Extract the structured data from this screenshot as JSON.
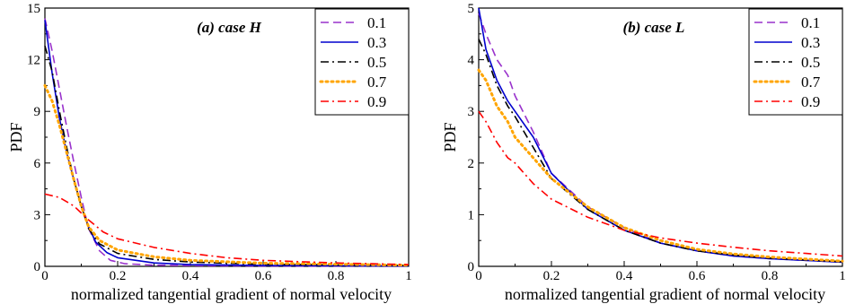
{
  "chart_data": [
    {
      "type": "line",
      "title": "(a) case H",
      "xlabel": "normalized tangential gradient of normal velocity",
      "ylabel": "PDF",
      "xlim": [
        0,
        1
      ],
      "ylim": [
        0,
        15
      ],
      "xticks": [
        "0",
        "0.2",
        "0.4",
        "0.6",
        "0.8",
        "1"
      ],
      "yticks": [
        "0",
        "3",
        "6",
        "9",
        "12",
        "15"
      ],
      "legend_position": "top-right",
      "series": [
        {
          "name": "0.1",
          "color": "#9932CC",
          "style": "dashed",
          "points": [
            [
              0,
              14.4
            ],
            [
              0.02,
              12.5
            ],
            [
              0.04,
              10.3
            ],
            [
              0.06,
              8.1
            ],
            [
              0.08,
              6.0
            ],
            [
              0.1,
              4.0
            ],
            [
              0.12,
              2.2
            ],
            [
              0.15,
              0.9
            ],
            [
              0.18,
              0.35
            ],
            [
              0.22,
              0.15
            ],
            [
              0.3,
              0.07
            ],
            [
              0.4,
              0.04
            ],
            [
              0.6,
              0.02
            ],
            [
              1,
              0.01
            ]
          ]
        },
        {
          "name": "0.3",
          "color": "#0000CD",
          "style": "solid",
          "points": [
            [
              0,
              14.3
            ],
            [
              0.02,
              11.2
            ],
            [
              0.04,
              8.6
            ],
            [
              0.06,
              6.6
            ],
            [
              0.08,
              5.0
            ],
            [
              0.1,
              3.5
            ],
            [
              0.12,
              2.3
            ],
            [
              0.14,
              1.4
            ],
            [
              0.17,
              0.8
            ],
            [
              0.2,
              0.5
            ],
            [
              0.3,
              0.2
            ],
            [
              0.4,
              0.1
            ],
            [
              0.6,
              0.05
            ],
            [
              1,
              0.02
            ]
          ]
        },
        {
          "name": "0.5",
          "color": "#000000",
          "style": "dashdot",
          "points": [
            [
              0,
              12.8
            ],
            [
              0.02,
              11.3
            ],
            [
              0.04,
              9.0
            ],
            [
              0.06,
              6.9
            ],
            [
              0.08,
              5.0
            ],
            [
              0.1,
              3.5
            ],
            [
              0.12,
              2.2
            ],
            [
              0.15,
              1.3
            ],
            [
              0.2,
              0.75
            ],
            [
              0.3,
              0.4
            ],
            [
              0.4,
              0.25
            ],
            [
              0.6,
              0.12
            ],
            [
              1,
              0.05
            ]
          ]
        },
        {
          "name": "0.7",
          "color": "#FFA500",
          "style": "dotted",
          "points": [
            [
              0,
              10.5
            ],
            [
              0.02,
              9.6
            ],
            [
              0.04,
              8.2
            ],
            [
              0.06,
              6.6
            ],
            [
              0.08,
              5.0
            ],
            [
              0.1,
              3.5
            ],
            [
              0.12,
              2.3
            ],
            [
              0.15,
              1.5
            ],
            [
              0.2,
              0.95
            ],
            [
              0.3,
              0.55
            ],
            [
              0.4,
              0.35
            ],
            [
              0.6,
              0.18
            ],
            [
              1,
              0.07
            ]
          ]
        },
        {
          "name": "0.9",
          "color": "#FF0000",
          "style": "dashdot",
          "points": [
            [
              0,
              4.2
            ],
            [
              0.04,
              4.0
            ],
            [
              0.08,
              3.5
            ],
            [
              0.12,
              2.7
            ],
            [
              0.16,
              2.0
            ],
            [
              0.2,
              1.6
            ],
            [
              0.3,
              1.1
            ],
            [
              0.4,
              0.75
            ],
            [
              0.5,
              0.5
            ],
            [
              0.6,
              0.35
            ],
            [
              0.7,
              0.27
            ],
            [
              0.8,
              0.2
            ],
            [
              0.9,
              0.15
            ],
            [
              1,
              0.1
            ]
          ]
        }
      ]
    },
    {
      "type": "line",
      "title": "(b) case L",
      "xlabel": "normalized tangential gradient of normal velocity",
      "ylabel": "PDF",
      "xlim": [
        0,
        1
      ],
      "ylim": [
        0,
        5
      ],
      "xticks": [
        "0",
        "0.2",
        "0.4",
        "0.6",
        "0.8",
        "1"
      ],
      "yticks": [
        "0",
        "1",
        "2",
        "3",
        "4",
        "5"
      ],
      "legend_position": "top-right",
      "series": [
        {
          "name": "0.1",
          "color": "#9932CC",
          "style": "dashed",
          "points": [
            [
              0,
              4.9
            ],
            [
              0.02,
              4.5
            ],
            [
              0.05,
              4.0
            ],
            [
              0.08,
              3.7
            ],
            [
              0.1,
              3.3
            ],
            [
              0.15,
              2.6
            ],
            [
              0.2,
              1.8
            ],
            [
              0.3,
              1.15
            ],
            [
              0.4,
              0.75
            ],
            [
              0.5,
              0.45
            ],
            [
              0.6,
              0.3
            ],
            [
              0.7,
              0.2
            ],
            [
              0.8,
              0.15
            ],
            [
              1,
              0.08
            ]
          ]
        },
        {
          "name": "0.3",
          "color": "#0000CD",
          "style": "solid",
          "points": [
            [
              0,
              5.0
            ],
            [
              0.02,
              4.2
            ],
            [
              0.05,
              3.6
            ],
            [
              0.08,
              3.2
            ],
            [
              0.1,
              3.0
            ],
            [
              0.15,
              2.5
            ],
            [
              0.2,
              1.8
            ],
            [
              0.3,
              1.1
            ],
            [
              0.4,
              0.7
            ],
            [
              0.5,
              0.45
            ],
            [
              0.6,
              0.3
            ],
            [
              0.7,
              0.2
            ],
            [
              0.8,
              0.15
            ],
            [
              1,
              0.08
            ]
          ]
        },
        {
          "name": "0.5",
          "color": "#000000",
          "style": "dashdot",
          "points": [
            [
              0,
              4.4
            ],
            [
              0.02,
              4.1
            ],
            [
              0.05,
              3.5
            ],
            [
              0.08,
              3.1
            ],
            [
              0.1,
              2.9
            ],
            [
              0.15,
              2.3
            ],
            [
              0.2,
              1.7
            ],
            [
              0.3,
              1.1
            ],
            [
              0.4,
              0.7
            ],
            [
              0.5,
              0.45
            ],
            [
              0.6,
              0.3
            ],
            [
              0.7,
              0.22
            ],
            [
              0.8,
              0.16
            ],
            [
              1,
              0.09
            ]
          ]
        },
        {
          "name": "0.7",
          "color": "#FFA500",
          "style": "dotted",
          "points": [
            [
              0,
              3.8
            ],
            [
              0.02,
              3.6
            ],
            [
              0.05,
              3.1
            ],
            [
              0.08,
              2.8
            ],
            [
              0.1,
              2.5
            ],
            [
              0.15,
              2.1
            ],
            [
              0.2,
              1.7
            ],
            [
              0.3,
              1.15
            ],
            [
              0.4,
              0.75
            ],
            [
              0.5,
              0.5
            ],
            [
              0.6,
              0.33
            ],
            [
              0.7,
              0.24
            ],
            [
              0.8,
              0.18
            ],
            [
              1,
              0.1
            ]
          ]
        },
        {
          "name": "0.9",
          "color": "#FF0000",
          "style": "dashdot",
          "points": [
            [
              0,
              3.0
            ],
            [
              0.02,
              2.8
            ],
            [
              0.05,
              2.4
            ],
            [
              0.08,
              2.1
            ],
            [
              0.1,
              2.0
            ],
            [
              0.15,
              1.6
            ],
            [
              0.2,
              1.3
            ],
            [
              0.3,
              0.95
            ],
            [
              0.4,
              0.7
            ],
            [
              0.5,
              0.55
            ],
            [
              0.6,
              0.45
            ],
            [
              0.7,
              0.37
            ],
            [
              0.8,
              0.3
            ],
            [
              0.9,
              0.25
            ],
            [
              1,
              0.2
            ]
          ]
        }
      ]
    }
  ]
}
